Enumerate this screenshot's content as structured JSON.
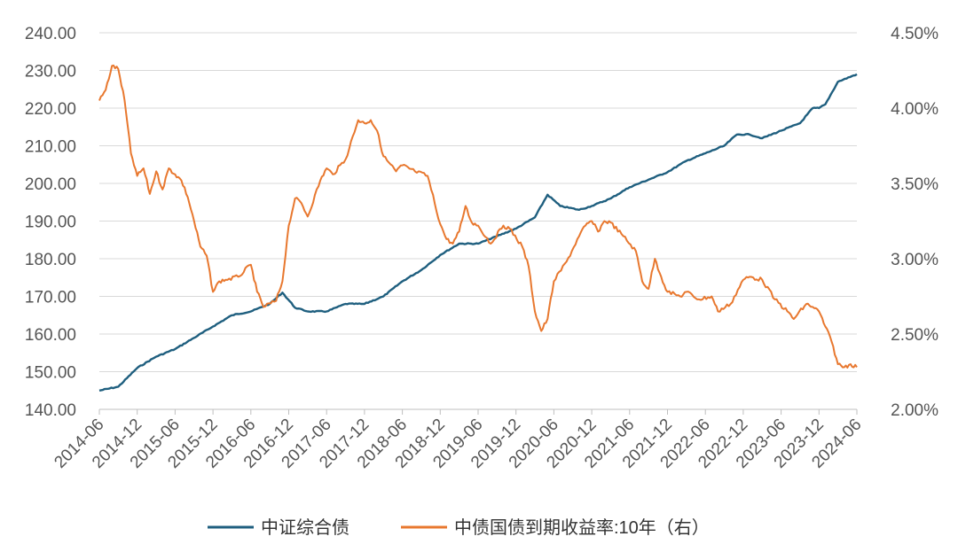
{
  "chart_data": {
    "type": "line",
    "title": "",
    "left_axis": {
      "ylim": [
        140,
        240
      ],
      "ticks": [
        "140.00",
        "150.00",
        "160.00",
        "170.00",
        "180.00",
        "190.00",
        "200.00",
        "210.00",
        "220.00",
        "230.00",
        "240.00"
      ]
    },
    "right_axis": {
      "ylim": [
        2.0,
        4.5
      ],
      "ticks": [
        "2.00%",
        "2.50%",
        "3.00%",
        "3.50%",
        "4.00%",
        "4.50%"
      ]
    },
    "x_ticks": [
      "2014-06",
      "2014-12",
      "2015-06",
      "2015-12",
      "2016-06",
      "2016-12",
      "2017-06",
      "2017-12",
      "2018-06",
      "2018-12",
      "2019-06",
      "2019-12",
      "2020-06",
      "2020-12",
      "2021-06",
      "2021-12",
      "2022-06",
      "2022-12",
      "2023-06",
      "2023-12",
      "2024-06"
    ],
    "grid": true,
    "legend_position": "bottom",
    "series": [
      {
        "name": "中证综合债",
        "axis": "left",
        "color": "#1f5f7f",
        "x": [
          "2014-06",
          "2014-09",
          "2014-12",
          "2015-03",
          "2015-06",
          "2015-09",
          "2015-12",
          "2016-03",
          "2016-06",
          "2016-09",
          "2016-11",
          "2017-01",
          "2017-03",
          "2017-06",
          "2017-09",
          "2017-12",
          "2018-03",
          "2018-06",
          "2018-09",
          "2018-12",
          "2019-03",
          "2019-06",
          "2019-09",
          "2019-12",
          "2020-03",
          "2020-05",
          "2020-07",
          "2020-10",
          "2020-12",
          "2021-03",
          "2021-06",
          "2021-09",
          "2021-12",
          "2022-03",
          "2022-06",
          "2022-09",
          "2022-11",
          "2023-01",
          "2023-03",
          "2023-06",
          "2023-09",
          "2023-11",
          "2023-12",
          "2024-01",
          "2024-03",
          "2024-06"
        ],
        "values": [
          145,
          146,
          151,
          154,
          156,
          159,
          162,
          165,
          166,
          168,
          171,
          167,
          166,
          166,
          168,
          168,
          170,
          174,
          177,
          181,
          184,
          184,
          186,
          188,
          191,
          197,
          194,
          193,
          194,
          196,
          199,
          201,
          203,
          206,
          208,
          210,
          213,
          213,
          212,
          214,
          216,
          220,
          220,
          221,
          227,
          229
        ]
      },
      {
        "name": "中债国债到期收益率:10年（右）",
        "axis": "right",
        "color": "#e8782f",
        "x": [
          "2014-06",
          "2014-07",
          "2014-08",
          "2014-09",
          "2014-10",
          "2014-11",
          "2014-12",
          "2015-01",
          "2015-02",
          "2015-03",
          "2015-04",
          "2015-05",
          "2015-06",
          "2015-07",
          "2015-08",
          "2015-09",
          "2015-10",
          "2015-11",
          "2015-12",
          "2016-01",
          "2016-02",
          "2016-04",
          "2016-06",
          "2016-07",
          "2016-08",
          "2016-10",
          "2016-11",
          "2016-12",
          "2017-01",
          "2017-02",
          "2017-03",
          "2017-05",
          "2017-06",
          "2017-07",
          "2017-09",
          "2017-11",
          "2017-12",
          "2018-01",
          "2018-02",
          "2018-03",
          "2018-05",
          "2018-06",
          "2018-08",
          "2018-10",
          "2018-12",
          "2019-01",
          "2019-02",
          "2019-03",
          "2019-04",
          "2019-05",
          "2019-06",
          "2019-08",
          "2019-10",
          "2019-11",
          "2020-01",
          "2020-02",
          "2020-03",
          "2020-04",
          "2020-05",
          "2020-06",
          "2020-08",
          "2020-10",
          "2020-11",
          "2020-12",
          "2021-01",
          "2021-02",
          "2021-03",
          "2021-05",
          "2021-07",
          "2021-08",
          "2021-09",
          "2021-10",
          "2021-11",
          "2021-12",
          "2022-02",
          "2022-03",
          "2022-05",
          "2022-07",
          "2022-08",
          "2022-10",
          "2022-12",
          "2023-01",
          "2023-03",
          "2023-05",
          "2023-07",
          "2023-08",
          "2023-10",
          "2023-11",
          "2023-12",
          "2024-01",
          "2024-02",
          "2024-03",
          "2024-04",
          "2024-05",
          "2024-06"
        ],
        "values": [
          4.05,
          4.12,
          4.28,
          4.26,
          4.05,
          3.7,
          3.55,
          3.6,
          3.43,
          3.58,
          3.46,
          3.6,
          3.56,
          3.52,
          3.41,
          3.25,
          3.08,
          3.02,
          2.78,
          2.85,
          2.86,
          2.88,
          2.96,
          2.78,
          2.68,
          2.72,
          2.85,
          3.22,
          3.4,
          3.37,
          3.28,
          3.52,
          3.6,
          3.56,
          3.66,
          3.92,
          3.9,
          3.92,
          3.85,
          3.68,
          3.58,
          3.62,
          3.58,
          3.55,
          3.23,
          3.13,
          3.1,
          3.18,
          3.35,
          3.24,
          3.22,
          3.1,
          3.22,
          3.2,
          3.08,
          2.95,
          2.65,
          2.52,
          2.6,
          2.85,
          2.98,
          3.15,
          3.22,
          3.25,
          3.18,
          3.25,
          3.24,
          3.15,
          3.05,
          2.85,
          2.8,
          3.0,
          2.88,
          2.78,
          2.75,
          2.78,
          2.73,
          2.75,
          2.65,
          2.7,
          2.86,
          2.88,
          2.86,
          2.73,
          2.65,
          2.6,
          2.7,
          2.68,
          2.65,
          2.55,
          2.45,
          2.3,
          2.28,
          2.3,
          2.28
        ]
      }
    ]
  }
}
